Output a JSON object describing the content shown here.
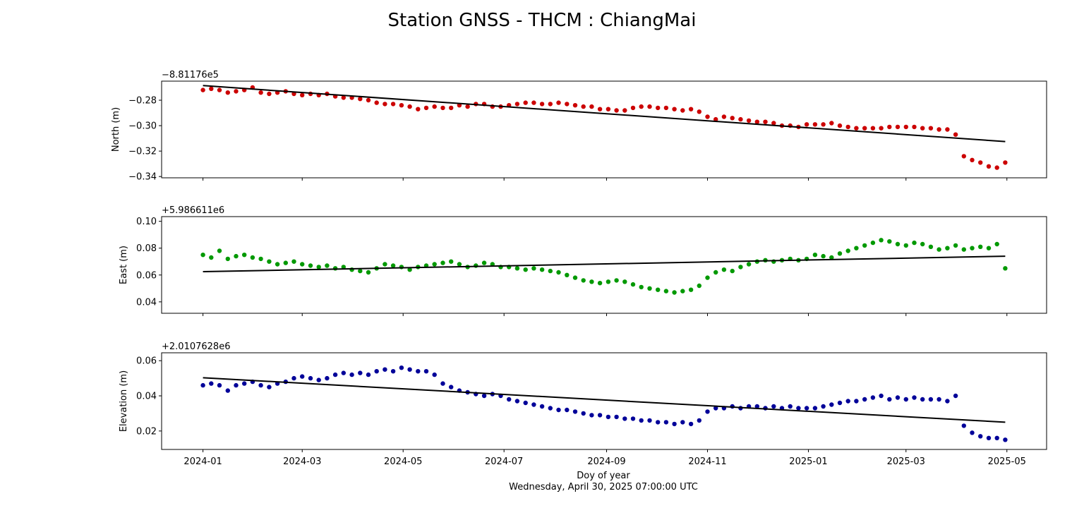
{
  "figure": {
    "title": "Station GNSS - THCM : ChiangMai",
    "xlabel": "Doy of year",
    "footer": "Wednesday, April 30, 2025 07:00:00 UTC",
    "x_tick_labels": [
      "2024-01",
      "2024-03",
      "2024-05",
      "2024-07",
      "2024-09",
      "2024-11",
      "2025-01",
      "2025-03",
      "2025-05"
    ]
  },
  "chart_data": [
    {
      "type": "scatter",
      "name": "north",
      "ylabel": "North (m)",
      "offset_label": "−8.81176e5",
      "color": "#cc0000",
      "xlim": [
        "2023-12-07",
        "2025-05-25"
      ],
      "ylim": [
        -0.341,
        -0.265
      ],
      "y_ticks": [
        -0.34,
        -0.32,
        -0.3,
        -0.28
      ],
      "y_tick_labels": [
        "−0.34",
        "−0.32",
        "−0.30",
        "−0.28"
      ],
      "trend": {
        "x": [
          "2024-01-01",
          "2025-04-30"
        ],
        "y": [
          -0.2685,
          -0.3125
        ]
      },
      "series": [
        {
          "x": [
            "2024-01-01",
            "2024-01-06",
            "2024-01-11",
            "2024-01-16",
            "2024-01-21",
            "2024-01-26",
            "2024-01-31",
            "2024-02-05",
            "2024-02-10",
            "2024-02-15",
            "2024-02-20",
            "2024-02-25",
            "2024-03-01",
            "2024-03-06",
            "2024-03-11",
            "2024-03-16",
            "2024-03-21",
            "2024-03-26",
            "2024-03-31",
            "2024-04-05",
            "2024-04-10",
            "2024-04-15",
            "2024-04-20",
            "2024-04-25",
            "2024-04-30",
            "2024-05-05",
            "2024-05-10",
            "2024-05-15",
            "2024-05-20",
            "2024-05-25",
            "2024-05-30",
            "2024-06-04",
            "2024-06-09",
            "2024-06-14",
            "2024-06-19",
            "2024-06-24",
            "2024-06-29",
            "2024-07-04",
            "2024-07-09",
            "2024-07-14",
            "2024-07-19",
            "2024-07-24",
            "2024-07-29",
            "2024-08-03",
            "2024-08-08",
            "2024-08-13",
            "2024-08-18",
            "2024-08-23",
            "2024-08-28",
            "2024-09-02",
            "2024-09-07",
            "2024-09-12",
            "2024-09-17",
            "2024-09-22",
            "2024-09-27",
            "2024-10-02",
            "2024-10-07",
            "2024-10-12",
            "2024-10-17",
            "2024-10-22",
            "2024-10-27",
            "2024-11-01",
            "2024-11-06",
            "2024-11-11",
            "2024-11-16",
            "2024-11-21",
            "2024-11-26",
            "2024-12-01",
            "2024-12-06",
            "2024-12-11",
            "2024-12-16",
            "2024-12-21",
            "2024-12-26",
            "2024-12-31",
            "2025-01-05",
            "2025-01-10",
            "2025-01-15",
            "2025-01-20",
            "2025-01-25",
            "2025-01-30",
            "2025-02-04",
            "2025-02-09",
            "2025-02-14",
            "2025-02-19",
            "2025-02-24",
            "2025-03-01",
            "2025-03-06",
            "2025-03-11",
            "2025-03-16",
            "2025-03-21",
            "2025-03-26",
            "2025-03-31",
            "2025-04-05",
            "2025-04-10",
            "2025-04-15",
            "2025-04-20",
            "2025-04-25",
            "2025-04-30"
          ],
          "y": [
            -0.272,
            -0.271,
            -0.272,
            -0.274,
            -0.273,
            -0.272,
            -0.27,
            -0.274,
            -0.275,
            -0.274,
            -0.273,
            -0.275,
            -0.276,
            -0.275,
            -0.276,
            -0.275,
            -0.277,
            -0.278,
            -0.278,
            -0.279,
            -0.28,
            -0.282,
            -0.283,
            -0.283,
            -0.284,
            -0.285,
            -0.287,
            -0.286,
            -0.285,
            -0.286,
            -0.286,
            -0.284,
            -0.285,
            -0.283,
            -0.283,
            -0.285,
            -0.285,
            -0.284,
            -0.283,
            -0.282,
            -0.282,
            -0.283,
            -0.283,
            -0.282,
            -0.283,
            -0.284,
            -0.285,
            -0.285,
            -0.287,
            -0.287,
            -0.288,
            -0.288,
            -0.286,
            -0.285,
            -0.285,
            -0.286,
            -0.286,
            -0.287,
            -0.288,
            -0.287,
            -0.289,
            -0.293,
            -0.295,
            -0.293,
            -0.294,
            -0.295,
            -0.296,
            -0.297,
            -0.297,
            -0.298,
            -0.3,
            -0.3,
            -0.301,
            -0.299,
            -0.299,
            -0.299,
            -0.298,
            -0.3,
            -0.301,
            -0.302,
            -0.302,
            -0.302,
            -0.302,
            -0.301,
            -0.301,
            -0.301,
            -0.301,
            -0.302,
            -0.302,
            -0.303,
            -0.303,
            -0.307,
            -0.324,
            -0.327,
            -0.329,
            -0.332,
            -0.333,
            -0.329
          ]
        }
      ]
    },
    {
      "type": "scatter",
      "name": "east",
      "ylabel": "East (m)",
      "offset_label": "+5.986611e6",
      "color": "#009900",
      "xlim": [
        "2023-12-07",
        "2025-05-25"
      ],
      "ylim": [
        0.0315,
        0.1035
      ],
      "y_ticks": [
        0.04,
        0.06,
        0.08,
        0.1
      ],
      "y_tick_labels": [
        "0.04",
        "0.06",
        "0.08",
        "0.10"
      ],
      "trend": {
        "x": [
          "2024-01-01",
          "2025-04-30"
        ],
        "y": [
          0.0625,
          0.074
        ]
      },
      "series": [
        {
          "x": [
            "2024-01-01",
            "2024-01-06",
            "2024-01-11",
            "2024-01-16",
            "2024-01-21",
            "2024-01-26",
            "2024-01-31",
            "2024-02-05",
            "2024-02-10",
            "2024-02-15",
            "2024-02-20",
            "2024-02-25",
            "2024-03-01",
            "2024-03-06",
            "2024-03-11",
            "2024-03-16",
            "2024-03-21",
            "2024-03-26",
            "2024-03-31",
            "2024-04-05",
            "2024-04-10",
            "2024-04-15",
            "2024-04-20",
            "2024-04-25",
            "2024-04-30",
            "2024-05-05",
            "2024-05-10",
            "2024-05-15",
            "2024-05-20",
            "2024-05-25",
            "2024-05-30",
            "2024-06-04",
            "2024-06-09",
            "2024-06-14",
            "2024-06-19",
            "2024-06-24",
            "2024-06-29",
            "2024-07-04",
            "2024-07-09",
            "2024-07-14",
            "2024-07-19",
            "2024-07-24",
            "2024-07-29",
            "2024-08-03",
            "2024-08-08",
            "2024-08-13",
            "2024-08-18",
            "2024-08-23",
            "2024-08-28",
            "2024-09-02",
            "2024-09-07",
            "2024-09-12",
            "2024-09-17",
            "2024-09-22",
            "2024-09-27",
            "2024-10-02",
            "2024-10-07",
            "2024-10-12",
            "2024-10-17",
            "2024-10-22",
            "2024-10-27",
            "2024-11-01",
            "2024-11-06",
            "2024-11-11",
            "2024-11-16",
            "2024-11-21",
            "2024-11-26",
            "2024-12-01",
            "2024-12-06",
            "2024-12-11",
            "2024-12-16",
            "2024-12-21",
            "2024-12-26",
            "2024-12-31",
            "2025-01-05",
            "2025-01-10",
            "2025-01-15",
            "2025-01-20",
            "2025-01-25",
            "2025-01-30",
            "2025-02-04",
            "2025-02-09",
            "2025-02-14",
            "2025-02-19",
            "2025-02-24",
            "2025-03-01",
            "2025-03-06",
            "2025-03-11",
            "2025-03-16",
            "2025-03-21",
            "2025-03-26",
            "2025-03-31",
            "2025-04-05",
            "2025-04-10",
            "2025-04-15",
            "2025-04-20",
            "2025-04-25",
            "2025-04-30"
          ],
          "y": [
            0.075,
            0.073,
            0.078,
            0.072,
            0.074,
            0.075,
            0.073,
            0.072,
            0.07,
            0.068,
            0.069,
            0.07,
            0.068,
            0.067,
            0.066,
            0.067,
            0.065,
            0.066,
            0.064,
            0.063,
            0.062,
            0.065,
            0.068,
            0.067,
            0.066,
            0.064,
            0.066,
            0.067,
            0.068,
            0.069,
            0.07,
            0.068,
            0.066,
            0.067,
            0.069,
            0.068,
            0.066,
            0.066,
            0.065,
            0.064,
            0.065,
            0.064,
            0.063,
            0.062,
            0.06,
            0.058,
            0.056,
            0.055,
            0.054,
            0.055,
            0.056,
            0.055,
            0.053,
            0.051,
            0.05,
            0.049,
            0.048,
            0.047,
            0.048,
            0.049,
            0.052,
            0.058,
            0.062,
            0.064,
            0.063,
            0.066,
            0.068,
            0.07,
            0.071,
            0.07,
            0.071,
            0.072,
            0.071,
            0.072,
            0.075,
            0.074,
            0.073,
            0.076,
            0.078,
            0.08,
            0.082,
            0.084,
            0.086,
            0.085,
            0.083,
            0.082,
            0.084,
            0.083,
            0.081,
            0.079,
            0.08,
            0.082,
            0.079,
            0.08,
            0.081,
            0.08,
            0.083,
            0.065
          ]
        }
      ]
    },
    {
      "type": "scatter",
      "name": "elevation",
      "ylabel": "Elevation (m)",
      "offset_label": "+2.0107628e6",
      "color": "#000099",
      "xlim": [
        "2023-12-07",
        "2025-05-25"
      ],
      "ylim": [
        0.0095,
        0.0645
      ],
      "y_ticks": [
        0.02,
        0.04,
        0.06
      ],
      "y_tick_labels": [
        "0.02",
        "0.04",
        "0.06"
      ],
      "trend": {
        "x": [
          "2024-01-01",
          "2025-04-30"
        ],
        "y": [
          0.0503,
          0.025
        ]
      },
      "series": [
        {
          "x": [
            "2024-01-01",
            "2024-01-06",
            "2024-01-11",
            "2024-01-16",
            "2024-01-21",
            "2024-01-26",
            "2024-01-31",
            "2024-02-05",
            "2024-02-10",
            "2024-02-15",
            "2024-02-20",
            "2024-02-25",
            "2024-03-01",
            "2024-03-06",
            "2024-03-11",
            "2024-03-16",
            "2024-03-21",
            "2024-03-26",
            "2024-03-31",
            "2024-04-05",
            "2024-04-10",
            "2024-04-15",
            "2024-04-20",
            "2024-04-25",
            "2024-04-30",
            "2024-05-05",
            "2024-05-10",
            "2024-05-15",
            "2024-05-20",
            "2024-05-25",
            "2024-05-30",
            "2024-06-04",
            "2024-06-09",
            "2024-06-14",
            "2024-06-19",
            "2024-06-24",
            "2024-06-29",
            "2024-07-04",
            "2024-07-09",
            "2024-07-14",
            "2024-07-19",
            "2024-07-24",
            "2024-07-29",
            "2024-08-03",
            "2024-08-08",
            "2024-08-13",
            "2024-08-18",
            "2024-08-23",
            "2024-08-28",
            "2024-09-02",
            "2024-09-07",
            "2024-09-12",
            "2024-09-17",
            "2024-09-22",
            "2024-09-27",
            "2024-10-02",
            "2024-10-07",
            "2024-10-12",
            "2024-10-17",
            "2024-10-22",
            "2024-10-27",
            "2024-11-01",
            "2024-11-06",
            "2024-11-11",
            "2024-11-16",
            "2024-11-21",
            "2024-11-26",
            "2024-12-01",
            "2024-12-06",
            "2024-12-11",
            "2024-12-16",
            "2024-12-21",
            "2024-12-26",
            "2024-12-31",
            "2025-01-05",
            "2025-01-10",
            "2025-01-15",
            "2025-01-20",
            "2025-01-25",
            "2025-01-30",
            "2025-02-04",
            "2025-02-09",
            "2025-02-14",
            "2025-02-19",
            "2025-02-24",
            "2025-03-01",
            "2025-03-06",
            "2025-03-11",
            "2025-03-16",
            "2025-03-21",
            "2025-03-26",
            "2025-03-31",
            "2025-04-05",
            "2025-04-10",
            "2025-04-15",
            "2025-04-20",
            "2025-04-25",
            "2025-04-30"
          ],
          "y": [
            0.046,
            0.047,
            0.046,
            0.043,
            0.046,
            0.047,
            0.048,
            0.046,
            0.045,
            0.047,
            0.048,
            0.05,
            0.051,
            0.05,
            0.049,
            0.05,
            0.052,
            0.053,
            0.052,
            0.053,
            0.052,
            0.054,
            0.055,
            0.054,
            0.056,
            0.055,
            0.054,
            0.054,
            0.052,
            0.047,
            0.045,
            0.043,
            0.042,
            0.041,
            0.04,
            0.041,
            0.04,
            0.038,
            0.037,
            0.036,
            0.035,
            0.034,
            0.033,
            0.032,
            0.032,
            0.031,
            0.03,
            0.029,
            0.029,
            0.028,
            0.028,
            0.027,
            0.027,
            0.026,
            0.026,
            0.025,
            0.025,
            0.024,
            0.025,
            0.024,
            0.026,
            0.031,
            0.033,
            0.033,
            0.034,
            0.033,
            0.034,
            0.034,
            0.033,
            0.034,
            0.033,
            0.034,
            0.033,
            0.033,
            0.033,
            0.034,
            0.035,
            0.036,
            0.037,
            0.037,
            0.038,
            0.039,
            0.04,
            0.038,
            0.039,
            0.038,
            0.039,
            0.038,
            0.038,
            0.038,
            0.037,
            0.04,
            0.023,
            0.019,
            0.017,
            0.016,
            0.016,
            0.015
          ]
        }
      ]
    }
  ]
}
